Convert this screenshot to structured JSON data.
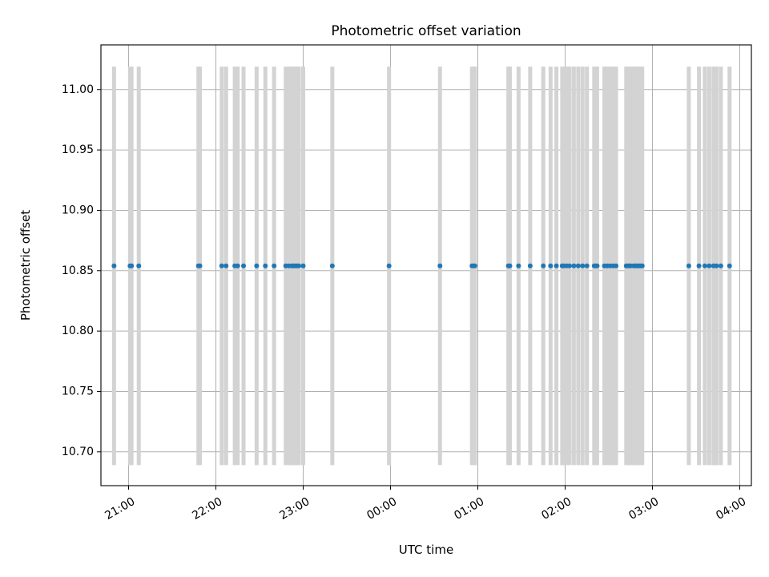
{
  "chart_data": {
    "type": "scatter",
    "title": "Photometric offset variation",
    "xlabel": "UTC time",
    "ylabel": "Photometric offset",
    "xlim": [
      "20:41",
      "04:08"
    ],
    "ylim": [
      10.672,
      11.037
    ],
    "x_ticks": [
      "21:00",
      "22:00",
      "23:00",
      "00:00",
      "01:00",
      "02:00",
      "03:00",
      "04:00"
    ],
    "y_ticks": [
      "10.70",
      "10.75",
      "10.80",
      "10.85",
      "10.90",
      "10.95",
      "11.00"
    ],
    "grid": true,
    "x": [
      "20:50",
      "21:01",
      "21:02",
      "21:07",
      "21:48",
      "21:49",
      "22:04",
      "22:07",
      "22:13",
      "22:15",
      "22:19",
      "22:28",
      "22:34",
      "22:40",
      "22:48",
      "22:50",
      "22:52",
      "22:53",
      "22:54",
      "22:55",
      "22:56",
      "22:57",
      "23:00",
      "23:20",
      "23:59",
      "00:34",
      "00:56",
      "00:57",
      "00:58",
      "01:21",
      "01:22",
      "01:28",
      "01:36",
      "01:45",
      "01:50",
      "01:54",
      "01:58",
      "01:59",
      "02:01",
      "02:03",
      "02:06",
      "02:09",
      "02:12",
      "02:15",
      "02:20",
      "02:21",
      "02:22",
      "02:27",
      "02:29",
      "02:31",
      "02:33",
      "02:35",
      "02:42",
      "02:43",
      "02:44",
      "02:45",
      "02:47",
      "02:48",
      "02:49",
      "02:50",
      "02:51",
      "02:52",
      "02:53",
      "03:25",
      "03:32",
      "03:36",
      "03:39",
      "03:42",
      "03:44",
      "03:47",
      "03:53"
    ],
    "values": [
      10.854,
      10.854,
      10.854,
      10.854,
      10.854,
      10.854,
      10.854,
      10.854,
      10.854,
      10.854,
      10.854,
      10.854,
      10.854,
      10.854,
      10.854,
      10.854,
      10.854,
      10.854,
      10.854,
      10.854,
      10.854,
      10.854,
      10.854,
      10.854,
      10.854,
      10.854,
      10.854,
      10.854,
      10.854,
      10.854,
      10.854,
      10.854,
      10.854,
      10.854,
      10.854,
      10.854,
      10.854,
      10.854,
      10.854,
      10.854,
      10.854,
      10.854,
      10.854,
      10.854,
      10.854,
      10.854,
      10.854,
      10.854,
      10.854,
      10.854,
      10.854,
      10.854,
      10.854,
      10.854,
      10.854,
      10.854,
      10.854,
      10.854,
      10.854,
      10.854,
      10.854,
      10.854,
      10.854,
      10.854,
      10.854,
      10.854,
      10.854,
      10.854,
      10.854,
      10.854,
      10.854
    ],
    "error": [
      0.165,
      0.165,
      0.165,
      0.165,
      0.165,
      0.165,
      0.165,
      0.165,
      0.165,
      0.165,
      0.165,
      0.165,
      0.165,
      0.165,
      0.165,
      0.165,
      0.165,
      0.165,
      0.165,
      0.165,
      0.165,
      0.165,
      0.165,
      0.165,
      0.165,
      0.165,
      0.165,
      0.165,
      0.165,
      0.165,
      0.165,
      0.165,
      0.165,
      0.165,
      0.165,
      0.165,
      0.165,
      0.165,
      0.165,
      0.165,
      0.165,
      0.165,
      0.165,
      0.165,
      0.165,
      0.165,
      0.165,
      0.165,
      0.165,
      0.165,
      0.165,
      0.165,
      0.165,
      0.165,
      0.165,
      0.165,
      0.165,
      0.165,
      0.165,
      0.165,
      0.165,
      0.165,
      0.165,
      0.165,
      0.165,
      0.165,
      0.165,
      0.165,
      0.165,
      0.165,
      0.165
    ],
    "colors": {
      "marker": "#1f77b4",
      "errorbar": "#d3d3d3",
      "grid": "#b0b0b0",
      "axes": "#000000"
    }
  }
}
